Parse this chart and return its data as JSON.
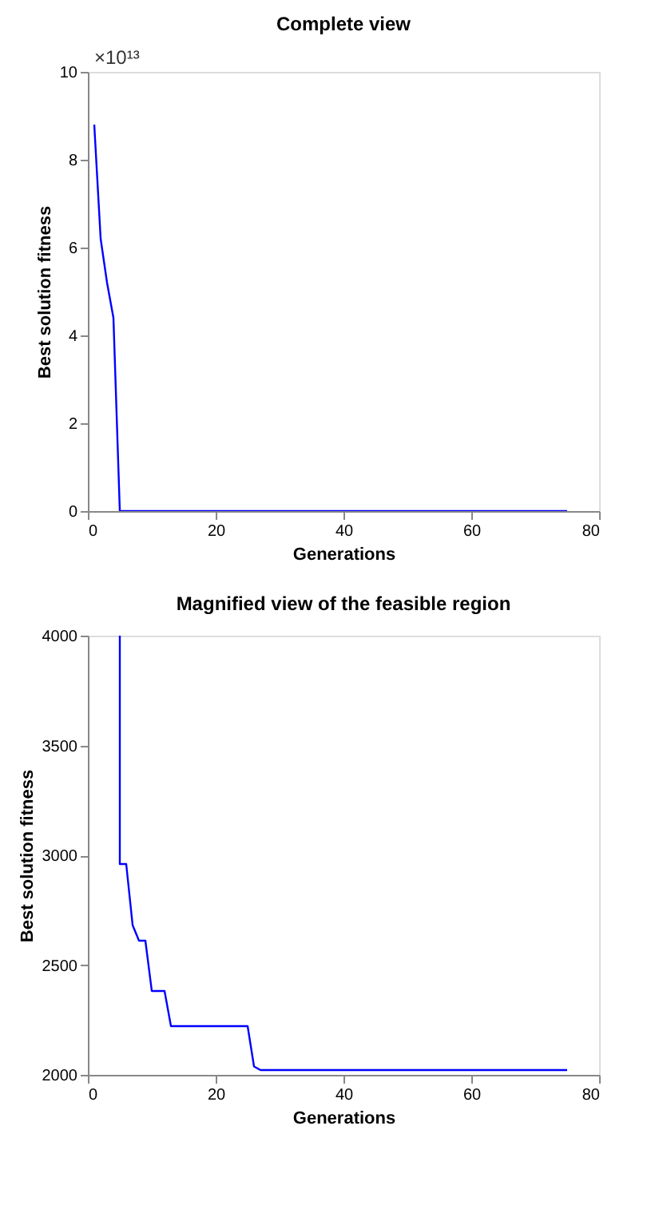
{
  "chart_data": [
    {
      "type": "line",
      "title": "Complete view",
      "xlabel": "Generations",
      "ylabel": "Best solution fitness",
      "annotations": [
        "×10¹³"
      ],
      "x": [
        1,
        2,
        3,
        4,
        5,
        10,
        20,
        30,
        40,
        50,
        60,
        70,
        75
      ],
      "series": [
        {
          "color": "#0000ff",
          "values": [
            8.8,
            6.2,
            5.2,
            4.4,
            0,
            0,
            0,
            0,
            0,
            0,
            0,
            0,
            0
          ]
        }
      ],
      "xlim": [
        0,
        80
      ],
      "xticks": [
        0,
        20,
        40,
        60,
        80
      ],
      "ylim": [
        0,
        10
      ],
      "yticks": [
        0,
        2,
        4,
        6,
        8,
        10
      ]
    },
    {
      "type": "line",
      "title": "Magnified view of the feasible region",
      "xlabel": "Generations",
      "ylabel": "Best solution fitness",
      "x": [
        5,
        5,
        6,
        7,
        8,
        9,
        10,
        12,
        13,
        25,
        26,
        27,
        75
      ],
      "series": [
        {
          "color": "#0000ff",
          "values": [
            4000,
            2960,
            2960,
            2682,
            2611,
            2611,
            2382,
            2382,
            2222,
            2222,
            2038,
            2022,
            2022
          ]
        }
      ],
      "xlim": [
        0,
        80
      ],
      "xticks": [
        0,
        20,
        40,
        60,
        80
      ],
      "ylim": [
        2000,
        4000
      ],
      "yticks": [
        2000,
        2500,
        3000,
        3500,
        4000
      ]
    }
  ]
}
